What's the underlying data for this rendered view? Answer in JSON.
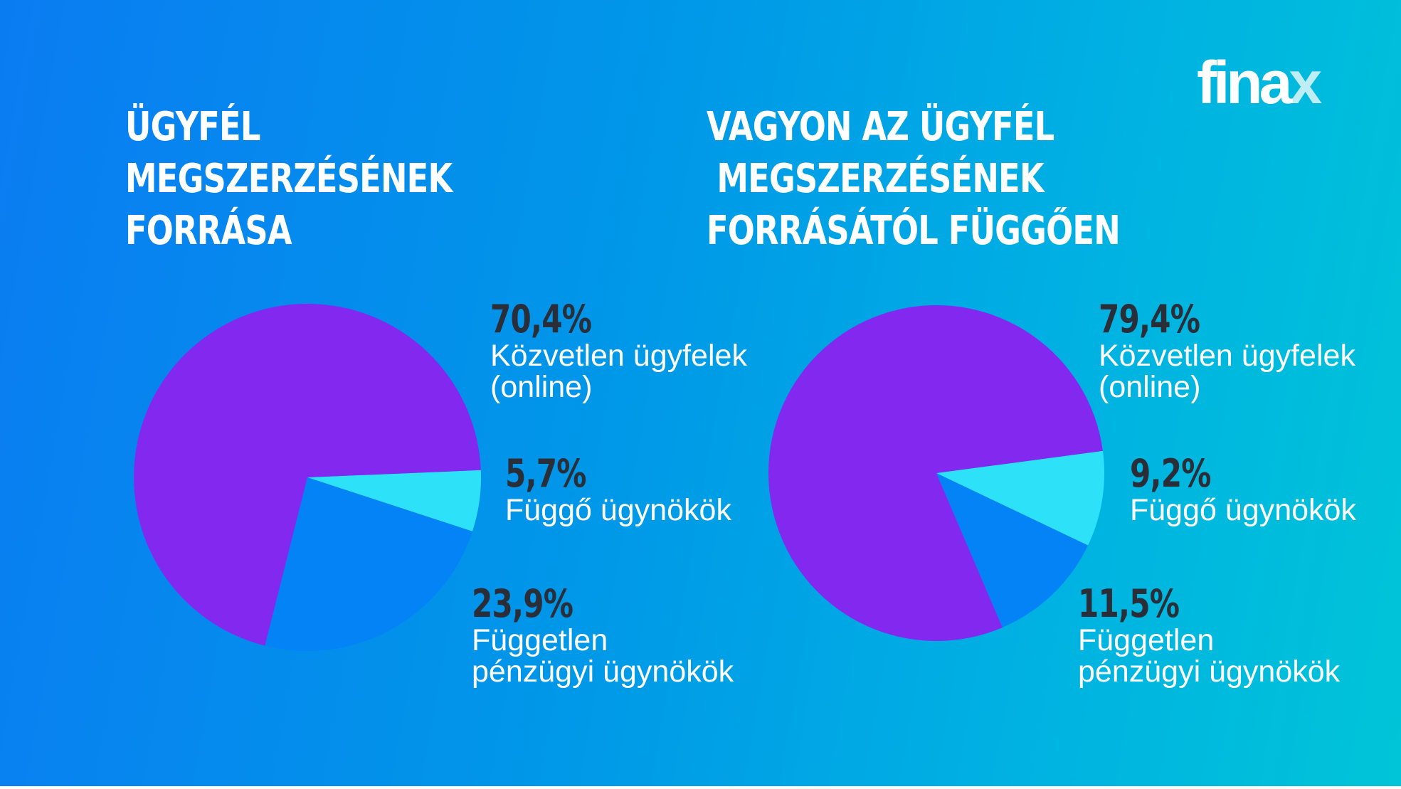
{
  "logo": {
    "text_main": "fina",
    "text_accent": "x"
  },
  "colors": {
    "direct": "#8328ef",
    "independent": "#0383f5",
    "tied": "#2de2f8",
    "value_text": "#2a2e38"
  },
  "chart_data": [
    {
      "type": "pie",
      "title_lines": [
        "ÜGYFÉL",
        "MEGSZERZÉSÉNEK",
        "FORRÁSA"
      ],
      "slices": [
        {
          "value": 70.4,
          "label": "70,4%",
          "name_lines": [
            "Közvetlen ügyfelek",
            "(online)"
          ],
          "color": "#8328ef"
        },
        {
          "value": 5.7,
          "label": "5,7%",
          "name_lines": [
            "Függő ügynökök"
          ],
          "color": "#2de2f8"
        },
        {
          "value": 23.9,
          "label": "23,9%",
          "name_lines": [
            "Független",
            "pénzügyi ügynökök"
          ],
          "color": "#0383f5"
        }
      ]
    },
    {
      "type": "pie",
      "title_lines": [
        "VAGYON AZ ÜGYFÉL",
        "MEGSZERZÉSÉNEK",
        "FORRÁSÁTÓL FÜGGŐEN"
      ],
      "slices": [
        {
          "value": 79.4,
          "label": "79,4%",
          "name_lines": [
            "Közvetlen ügyfelek",
            "(online)"
          ],
          "color": "#8328ef"
        },
        {
          "value": 9.2,
          "label": "9,2%",
          "name_lines": [
            "Függő ügynökök"
          ],
          "color": "#2de2f8"
        },
        {
          "value": 11.5,
          "label": "11,5%",
          "name_lines": [
            "Független",
            "pénzügyi ügynökök"
          ],
          "color": "#0383f5"
        }
      ]
    }
  ]
}
